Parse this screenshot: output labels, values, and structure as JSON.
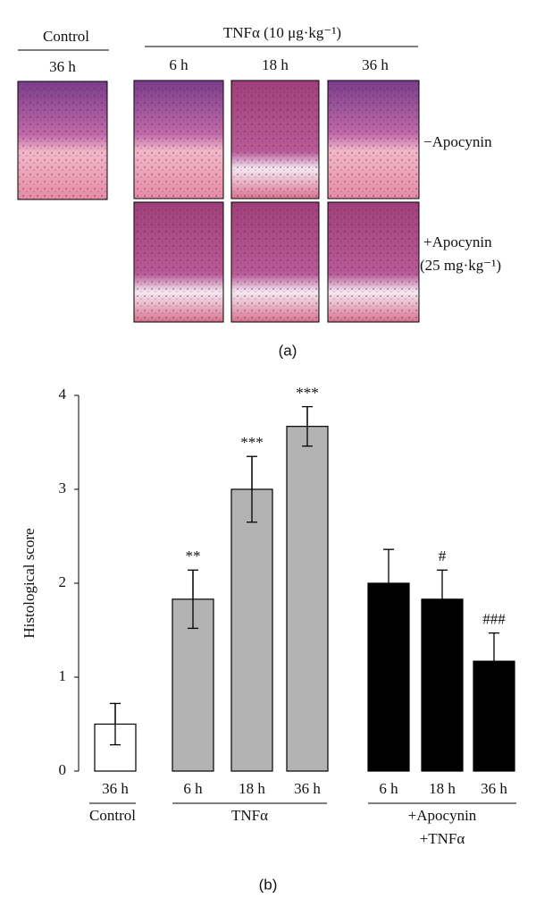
{
  "panel_a": {
    "control_header": "Control",
    "control_time": "36 h",
    "treatment_header": "TNFα (10 μg·kg⁻¹)",
    "times": [
      "6 h",
      "18 h",
      "36 h"
    ],
    "row_labels": [
      "−Apocynin",
      "+Apocynin",
      "(25 mg·kg⁻¹)"
    ],
    "label": "(a)"
  },
  "chart_data": {
    "type": "bar",
    "label": "(b)",
    "y_label": "Histological score",
    "categories": [
      "36 h",
      "6 h",
      "18 h",
      "36 h",
      "6 h",
      "18 h",
      "36 h"
    ],
    "series": [
      {
        "colors": [
          "#ffffff",
          "#b3b3b3",
          "#b3b3b3",
          "#b3b3b3",
          "#000000",
          "#000000",
          "#000000"
        ],
        "values": [
          0.5,
          1.83,
          3.0,
          3.67,
          2.0,
          1.83,
          1.17
        ],
        "errors": [
          0.22,
          0.31,
          0.35,
          0.21,
          0.36,
          0.31,
          0.3
        ],
        "annotations": [
          null,
          "**",
          "***",
          "***",
          null,
          "#",
          "###"
        ]
      }
    ],
    "groups": [
      {
        "label": "Control"
      },
      {
        "label": "TNFα"
      },
      {
        "label": "+Apocynin",
        "label2": "+TNFα"
      }
    ],
    "ylim": [
      0,
      4
    ],
    "yticks": [
      0,
      1,
      2,
      3,
      4
    ]
  }
}
